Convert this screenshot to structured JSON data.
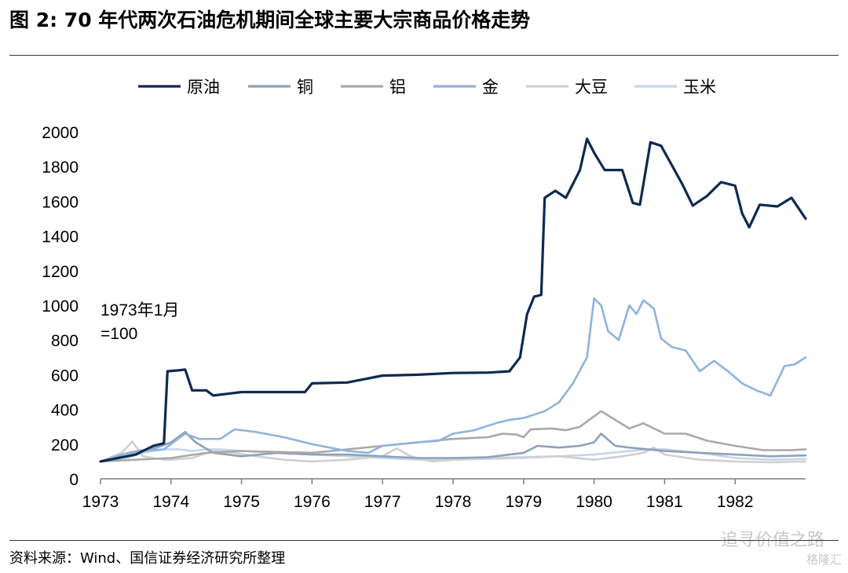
{
  "header": {
    "title": "图 2: 70 年代两次石油危机期间全球主要大宗商品价格走势"
  },
  "footer": {
    "source": "资料来源：Wind、国信证券经济研究所整理"
  },
  "watermark": {
    "text": "追寻价值之路",
    "brand": "格隆汇"
  },
  "chart_data": {
    "type": "line",
    "annotation": "1973年1月\n=100",
    "ylim": [
      0,
      2000
    ],
    "yticks": [
      0,
      200,
      400,
      600,
      800,
      1000,
      1200,
      1400,
      1600,
      1800,
      2000
    ],
    "xlim": [
      1973,
      1983
    ],
    "xticks": [
      "1973",
      "1974",
      "1975",
      "1976",
      "1977",
      "1978",
      "1979",
      "1980",
      "1981",
      "1982"
    ],
    "legend_position": "top",
    "series": [
      {
        "name": "原油",
        "color": "#0d2a52",
        "points": [
          [
            1973.0,
            100
          ],
          [
            1973.5,
            140
          ],
          [
            1973.75,
            190
          ],
          [
            1973.9,
            205
          ],
          [
            1973.95,
            620
          ],
          [
            1974.1,
            625
          ],
          [
            1974.2,
            630
          ],
          [
            1974.3,
            510
          ],
          [
            1974.5,
            510
          ],
          [
            1974.6,
            480
          ],
          [
            1974.8,
            490
          ],
          [
            1975.0,
            500
          ],
          [
            1975.5,
            500
          ],
          [
            1975.9,
            500
          ],
          [
            1976.0,
            550
          ],
          [
            1976.5,
            555
          ],
          [
            1977.0,
            595
          ],
          [
            1977.5,
            600
          ],
          [
            1978.0,
            610
          ],
          [
            1978.5,
            612
          ],
          [
            1978.8,
            620
          ],
          [
            1978.95,
            700
          ],
          [
            1979.05,
            950
          ],
          [
            1979.15,
            1050
          ],
          [
            1979.25,
            1060
          ],
          [
            1979.3,
            1620
          ],
          [
            1979.45,
            1660
          ],
          [
            1979.6,
            1620
          ],
          [
            1979.8,
            1780
          ],
          [
            1979.9,
            1960
          ],
          [
            1980.0,
            1880
          ],
          [
            1980.15,
            1780
          ],
          [
            1980.4,
            1780
          ],
          [
            1980.55,
            1590
          ],
          [
            1980.65,
            1580
          ],
          [
            1980.8,
            1940
          ],
          [
            1980.95,
            1920
          ],
          [
            1981.1,
            1810
          ],
          [
            1981.25,
            1700
          ],
          [
            1981.4,
            1575
          ],
          [
            1981.6,
            1630
          ],
          [
            1981.8,
            1710
          ],
          [
            1982.0,
            1690
          ],
          [
            1982.1,
            1530
          ],
          [
            1982.2,
            1450
          ],
          [
            1982.35,
            1580
          ],
          [
            1982.6,
            1570
          ],
          [
            1982.8,
            1620
          ],
          [
            1983.0,
            1500
          ]
        ]
      },
      {
        "name": "铜",
        "color": "#8da2b8",
        "points": [
          [
            1973.0,
            100
          ],
          [
            1973.4,
            150
          ],
          [
            1973.8,
            180
          ],
          [
            1974.0,
            210
          ],
          [
            1974.2,
            270
          ],
          [
            1974.35,
            210
          ],
          [
            1974.6,
            150
          ],
          [
            1975.0,
            130
          ],
          [
            1975.5,
            150
          ],
          [
            1976.0,
            140
          ],
          [
            1976.5,
            140
          ],
          [
            1977.0,
            130
          ],
          [
            1977.5,
            120
          ],
          [
            1978.0,
            120
          ],
          [
            1978.5,
            125
          ],
          [
            1979.0,
            150
          ],
          [
            1979.2,
            190
          ],
          [
            1979.5,
            180
          ],
          [
            1979.8,
            190
          ],
          [
            1980.0,
            210
          ],
          [
            1980.1,
            260
          ],
          [
            1980.3,
            190
          ],
          [
            1980.5,
            180
          ],
          [
            1981.0,
            160
          ],
          [
            1981.5,
            150
          ],
          [
            1982.0,
            140
          ],
          [
            1982.5,
            130
          ],
          [
            1983.0,
            135
          ]
        ]
      },
      {
        "name": "铝",
        "color": "#a9a9a9",
        "points": [
          [
            1973.0,
            100
          ],
          [
            1973.5,
            110
          ],
          [
            1974.0,
            120
          ],
          [
            1974.5,
            150
          ],
          [
            1975.0,
            160
          ],
          [
            1976.0,
            150
          ],
          [
            1977.0,
            190
          ],
          [
            1977.5,
            210
          ],
          [
            1978.0,
            230
          ],
          [
            1978.5,
            240
          ],
          [
            1978.7,
            260
          ],
          [
            1978.9,
            255
          ],
          [
            1979.0,
            240
          ],
          [
            1979.1,
            285
          ],
          [
            1979.4,
            290
          ],
          [
            1979.6,
            280
          ],
          [
            1979.8,
            300
          ],
          [
            1980.0,
            360
          ],
          [
            1980.1,
            390
          ],
          [
            1980.3,
            340
          ],
          [
            1980.5,
            290
          ],
          [
            1980.7,
            320
          ],
          [
            1981.0,
            260
          ],
          [
            1981.3,
            260
          ],
          [
            1981.6,
            220
          ],
          [
            1982.0,
            190
          ],
          [
            1982.4,
            165
          ],
          [
            1982.8,
            165
          ],
          [
            1983.0,
            170
          ]
        ]
      },
      {
        "name": "金",
        "color": "#8fb3de",
        "points": [
          [
            1973.0,
            100
          ],
          [
            1973.3,
            140
          ],
          [
            1973.6,
            160
          ],
          [
            1973.9,
            170
          ],
          [
            1974.0,
            200
          ],
          [
            1974.2,
            260
          ],
          [
            1974.4,
            230
          ],
          [
            1974.7,
            230
          ],
          [
            1974.9,
            285
          ],
          [
            1975.2,
            270
          ],
          [
            1975.6,
            240
          ],
          [
            1976.0,
            200
          ],
          [
            1976.5,
            160
          ],
          [
            1976.8,
            150
          ],
          [
            1977.0,
            190
          ],
          [
            1977.5,
            210
          ],
          [
            1977.8,
            220
          ],
          [
            1978.0,
            260
          ],
          [
            1978.3,
            280
          ],
          [
            1978.6,
            320
          ],
          [
            1978.8,
            340
          ],
          [
            1979.0,
            350
          ],
          [
            1979.3,
            390
          ],
          [
            1979.5,
            440
          ],
          [
            1979.7,
            550
          ],
          [
            1979.9,
            700
          ],
          [
            1980.0,
            1040
          ],
          [
            1980.1,
            1000
          ],
          [
            1980.2,
            850
          ],
          [
            1980.35,
            800
          ],
          [
            1980.5,
            1000
          ],
          [
            1980.6,
            950
          ],
          [
            1980.7,
            1030
          ],
          [
            1980.85,
            980
          ],
          [
            1980.95,
            810
          ],
          [
            1981.1,
            760
          ],
          [
            1981.3,
            740
          ],
          [
            1981.5,
            620
          ],
          [
            1981.7,
            680
          ],
          [
            1981.9,
            620
          ],
          [
            1982.1,
            550
          ],
          [
            1982.3,
            510
          ],
          [
            1982.5,
            480
          ],
          [
            1982.7,
            650
          ],
          [
            1982.85,
            660
          ],
          [
            1983.0,
            700
          ]
        ]
      },
      {
        "name": "大豆",
        "color": "#d0d0d0",
        "points": [
          [
            1973.0,
            100
          ],
          [
            1973.3,
            150
          ],
          [
            1973.45,
            215
          ],
          [
            1973.6,
            130
          ],
          [
            1973.9,
            110
          ],
          [
            1974.0,
            110
          ],
          [
            1974.3,
            120
          ],
          [
            1974.6,
            160
          ],
          [
            1974.9,
            150
          ],
          [
            1975.2,
            130
          ],
          [
            1975.6,
            110
          ],
          [
            1976.0,
            100
          ],
          [
            1976.5,
            110
          ],
          [
            1977.0,
            130
          ],
          [
            1977.2,
            175
          ],
          [
            1977.4,
            130
          ],
          [
            1977.7,
            100
          ],
          [
            1978.0,
            110
          ],
          [
            1978.5,
            120
          ],
          [
            1979.0,
            125
          ],
          [
            1979.5,
            130
          ],
          [
            1980.0,
            110
          ],
          [
            1980.4,
            130
          ],
          [
            1980.7,
            150
          ],
          [
            1980.85,
            180
          ],
          [
            1981.0,
            140
          ],
          [
            1981.5,
            110
          ],
          [
            1982.0,
            100
          ],
          [
            1982.5,
            95
          ],
          [
            1983.0,
            100
          ]
        ]
      },
      {
        "name": "玉米",
        "color": "#c5d6ec",
        "points": [
          [
            1973.0,
            100
          ],
          [
            1973.3,
            110
          ],
          [
            1973.6,
            150
          ],
          [
            1973.9,
            170
          ],
          [
            1974.1,
            170
          ],
          [
            1974.3,
            160
          ],
          [
            1974.5,
            170
          ],
          [
            1974.7,
            170
          ],
          [
            1975.0,
            160
          ],
          [
            1975.5,
            150
          ],
          [
            1976.0,
            140
          ],
          [
            1976.5,
            130
          ],
          [
            1977.0,
            120
          ],
          [
            1977.5,
            110
          ],
          [
            1978.0,
            110
          ],
          [
            1978.5,
            115
          ],
          [
            1979.0,
            120
          ],
          [
            1979.5,
            130
          ],
          [
            1980.0,
            140
          ],
          [
            1980.5,
            160
          ],
          [
            1980.8,
            170
          ],
          [
            1981.0,
            170
          ],
          [
            1981.5,
            150
          ],
          [
            1982.0,
            120
          ],
          [
            1982.5,
            110
          ],
          [
            1983.0,
            115
          ]
        ]
      }
    ]
  }
}
